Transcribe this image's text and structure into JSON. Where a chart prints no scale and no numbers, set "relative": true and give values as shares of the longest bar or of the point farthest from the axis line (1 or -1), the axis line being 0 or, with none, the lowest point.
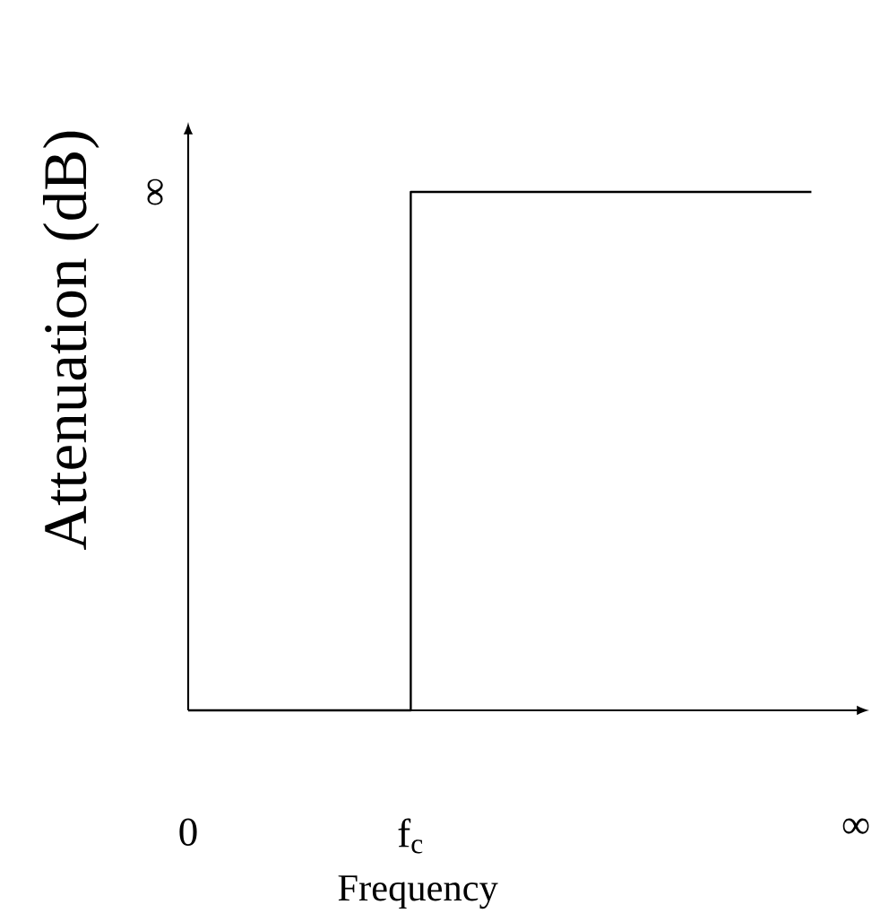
{
  "chart_data": {
    "type": "step",
    "relative": true,
    "xlabel": "Frequency",
    "ylabel": "Attenuation (dB)",
    "categories": [
      "0",
      null,
      null,
      null,
      null,
      "f$_{c}$",
      null,
      null,
      null,
      null,
      null,
      null,
      null,
      null,
      null,
      "∞"
    ],
    "values": [
      0,
      0,
      0,
      0,
      0,
      1,
      1,
      1,
      1,
      1,
      1,
      1,
      1,
      1,
      1,
      null
    ],
    "color": "#000000",
    "annotations": [
      "∞"
    ]
  }
}
